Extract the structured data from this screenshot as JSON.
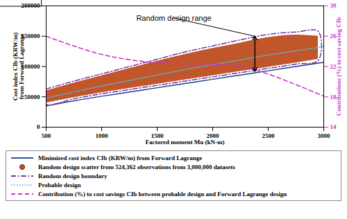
{
  "chart_data": {
    "type": "line",
    "x_label": "Factored moment Mu (kN·m)",
    "y_label": "Cost index CIb (KRW/m)\nfrom Forward Lagrange",
    "y2_label": "Contributions (%) to cost saving CIb",
    "xlim": [
      500,
      3000
    ],
    "xticks": [
      500,
      1000,
      1500,
      2000,
      2500,
      3000
    ],
    "ylim": [
      0,
      200000
    ],
    "yticks": [
      0,
      50000,
      100000,
      150000,
      200000
    ],
    "y2lim": [
      14,
      30
    ],
    "y2ticks": [
      14,
      18,
      22,
      26,
      30
    ],
    "grid": false,
    "legend": "bottom",
    "x": [
      500,
      750,
      1000,
      1250,
      1500,
      1750,
      2000,
      2250,
      2500,
      2750,
      3000
    ],
    "series": [
      {
        "name": "Minimized cost index CIb (KRW/m) from Forward Lagrange",
        "type": "line",
        "color": "#1f3d8a",
        "line_style": "solid",
        "values": [
          35000,
          43500,
          51000,
          58000,
          65000,
          72000,
          79000,
          86000,
          93000,
          100000,
          107000
        ]
      },
      {
        "name": "Random design scatter from 524,362 observations from 3,000,000 datasets",
        "type": "area",
        "color": "#c0562a",
        "marker": "circle",
        "x": [
          500,
          750,
          1000,
          1250,
          1500,
          1750,
          2000,
          2250,
          2500,
          2750,
          2950
        ],
        "values": [
          60000,
          73000,
          85000,
          97000,
          109000,
          120000,
          130000,
          139000,
          148000,
          152000,
          150000
        ],
        "lower": [
          40000,
          49000,
          57000,
          64000,
          71000,
          78000,
          85000,
          92000,
          99000,
          106000,
          112000
        ]
      },
      {
        "name": "Random design boundary",
        "type": "line",
        "color": "#7030a0",
        "line_style": "dashdot",
        "x": [
          500,
          750,
          1000,
          1250,
          1500,
          1750,
          2000,
          2250,
          2500,
          2750,
          2950,
          2950,
          2750,
          2500,
          2250,
          2000,
          1750,
          1500,
          1250,
          1000,
          750,
          500,
          500
        ],
        "values": [
          63000,
          76000,
          88000,
          100000,
          112000,
          124000,
          134000,
          144000,
          153000,
          157000,
          158000,
          110000,
          104000,
          97000,
          90000,
          83000,
          76000,
          69000,
          62000,
          55000,
          47000,
          38000,
          63000
        ]
      },
      {
        "name": "Probable design",
        "type": "line",
        "color": "#4fc3e0",
        "line_style": "dotted",
        "values": [
          48000,
          58000,
          68000,
          77000,
          86000,
          95000,
          103000,
          111000,
          119000,
          126000,
          133000
        ]
      },
      {
        "name": "Contribution (%) to cost savings CIb between probable design and Forward Lagrange design",
        "type": "line",
        "color": "#cc33cc",
        "line_style": "dashed",
        "axis": "y2",
        "values": [
          26,
          24.7,
          23.6,
          22.9,
          22.5,
          22.4,
          22.3,
          22.0,
          21.0,
          19.6,
          18.1
        ]
      }
    ],
    "annotation": {
      "text": "Random design range",
      "x": 2380,
      "y_from": 92000,
      "y_to": 150000,
      "text_x": 1650,
      "text_y": 180000
    }
  }
}
